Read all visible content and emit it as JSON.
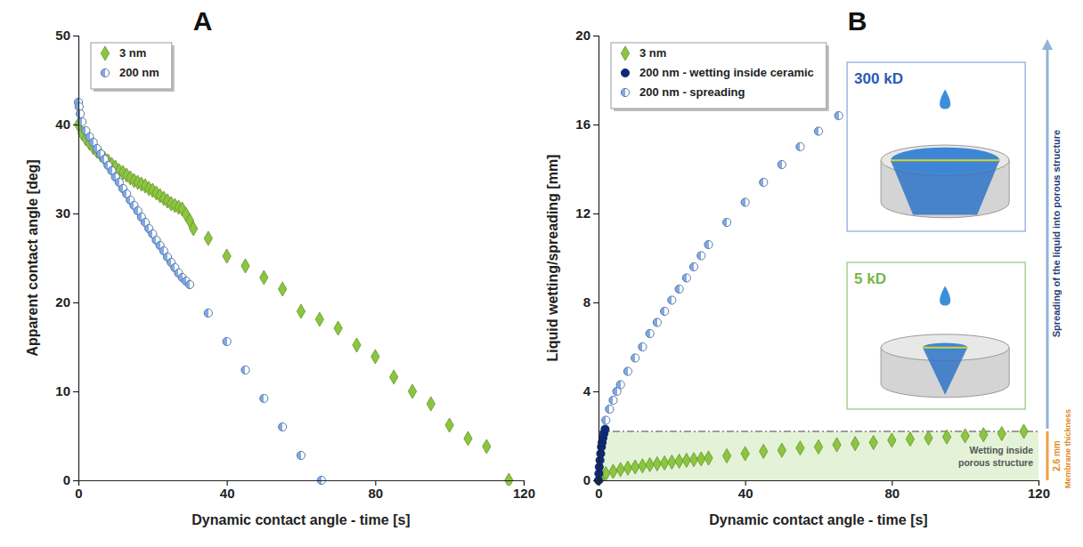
{
  "chart_data": [
    {
      "type": "scatter",
      "panel_label": "A",
      "x_label": "Dynamic contact angle - time [s]",
      "y_label": "Apparent contact angle [deg]",
      "xlim": [
        0,
        120
      ],
      "xticks": [
        0,
        40,
        80,
        120
      ],
      "ylim": [
        0,
        50
      ],
      "yticks": [
        0,
        10,
        20,
        30,
        40,
        50
      ],
      "grid": false,
      "legend": "upper left",
      "series": [
        {
          "name": "3 nm",
          "color": "#8cc63f",
          "marker": "diamond",
          "x": [
            0,
            1,
            2,
            3,
            4,
            5,
            6,
            7,
            8,
            9,
            10,
            11,
            12,
            13,
            14,
            15,
            16,
            17,
            18,
            19,
            20,
            21,
            22,
            23,
            24,
            25,
            26,
            27,
            28,
            29,
            30,
            31,
            35,
            40,
            45,
            50,
            55,
            60,
            65,
            70,
            75,
            80,
            85,
            90,
            95,
            100,
            105,
            110,
            116
          ],
          "values": [
            40.0,
            39.0,
            38.4,
            37.9,
            37.4,
            37.0,
            36.6,
            36.2,
            35.9,
            35.5,
            35.2,
            34.8,
            34.6,
            34.3,
            34.0,
            33.7,
            33.5,
            33.3,
            33.1,
            32.8,
            32.6,
            32.3,
            32.0,
            31.7,
            31.4,
            31.1,
            30.9,
            30.7,
            30.5,
            29.9,
            29.2,
            28.3,
            27.2,
            25.2,
            24.1,
            22.8,
            21.5,
            19.0,
            18.1,
            17.1,
            15.2,
            13.9,
            11.6,
            10.0,
            8.6,
            6.2,
            4.7,
            3.8,
            0
          ]
        },
        {
          "name": "200 nm",
          "color": "#7fa8e6",
          "marker": "half-circle",
          "x": [
            0,
            0.2,
            0.5,
            1,
            2,
            3,
            4,
            5,
            6,
            7,
            8,
            9,
            10,
            11,
            12,
            13,
            14,
            15,
            16,
            17,
            18,
            19,
            20,
            21,
            22,
            23,
            24,
            25,
            26,
            27,
            28,
            29,
            30,
            35,
            40,
            45,
            50,
            55,
            60,
            65.5
          ],
          "values": [
            42.5,
            42.0,
            41.2,
            40.3,
            39.3,
            38.6,
            38.0,
            37.3,
            36.7,
            36.1,
            35.4,
            34.8,
            34.1,
            33.5,
            32.8,
            32.2,
            31.5,
            30.9,
            30.3,
            29.6,
            29.0,
            28.3,
            27.7,
            27.0,
            26.4,
            25.8,
            25.1,
            24.5,
            23.9,
            23.3,
            22.8,
            22.4,
            22.0,
            18.8,
            15.6,
            12.4,
            9.2,
            6.0,
            2.8,
            0
          ]
        }
      ]
    },
    {
      "type": "scatter",
      "panel_label": "B",
      "x_label": "Dynamic contact angle - time [s]",
      "y_label": "Liquid wetting/spreading [mm]",
      "xlim": [
        0,
        120
      ],
      "xticks": [
        0,
        40,
        80,
        120
      ],
      "ylim": [
        0,
        20
      ],
      "yticks": [
        0,
        4,
        8,
        12,
        16,
        20
      ],
      "grid": false,
      "legend": "upper left",
      "series": [
        {
          "name": "3 nm",
          "color": "#8cc63f",
          "marker": "diamond",
          "x": [
            0,
            1,
            2,
            4,
            6,
            8,
            10,
            12,
            14,
            16,
            18,
            20,
            22,
            24,
            26,
            28,
            30,
            35,
            40,
            45,
            50,
            55,
            60,
            65,
            70,
            75,
            80,
            85,
            90,
            95,
            100,
            105,
            110,
            116
          ],
          "values": [
            0,
            0.2,
            0.3,
            0.4,
            0.48,
            0.55,
            0.6,
            0.65,
            0.7,
            0.74,
            0.78,
            0.82,
            0.86,
            0.9,
            0.93,
            0.96,
            1.0,
            1.1,
            1.2,
            1.3,
            1.35,
            1.45,
            1.5,
            1.6,
            1.65,
            1.7,
            1.8,
            1.85,
            1.9,
            1.95,
            2.0,
            2.05,
            2.1,
            2.2
          ]
        },
        {
          "name": "200 nm - wetting inside ceramic",
          "color": "#0d2a7a",
          "marker": "circle",
          "x": [
            0,
            0.1,
            0.2,
            0.4,
            0.6,
            0.8,
            1.0,
            1.2,
            1.5,
            1.8
          ],
          "values": [
            0,
            0.3,
            0.6,
            0.9,
            1.2,
            1.5,
            1.7,
            1.9,
            2.1,
            2.3
          ]
        },
        {
          "name": "200 nm - spreading",
          "color": "#7fa8e6",
          "marker": "half-circle",
          "x": [
            2,
            3,
            4,
            5,
            6,
            8,
            10,
            12,
            14,
            16,
            18,
            20,
            22,
            24,
            26,
            28,
            30,
            35,
            40,
            45,
            50,
            55,
            60,
            65.5
          ],
          "values": [
            2.7,
            3.2,
            3.6,
            4.0,
            4.3,
            4.9,
            5.5,
            6.0,
            6.6,
            7.1,
            7.6,
            8.1,
            8.6,
            9.1,
            9.6,
            10.1,
            10.6,
            11.6,
            12.5,
            13.4,
            14.2,
            15.0,
            15.7,
            16.4
          ]
        }
      ],
      "band": {
        "y": [
          0,
          2.2
        ],
        "label": "Wetting inside porous structure"
      },
      "insets": [
        {
          "label": "300 kD"
        },
        {
          "label": "5 kD"
        }
      ],
      "annotations": [
        "Spreading of the liquid into porous structure"
      ],
      "thickness": {
        "label": "2.6 mm",
        "text": "Membrane thickness"
      }
    }
  ]
}
